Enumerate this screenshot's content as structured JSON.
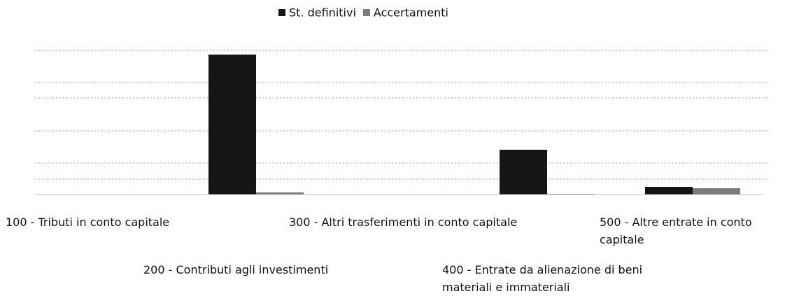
{
  "chart_data": {
    "type": "bar",
    "categories": [
      "100 - Tributi in conto capitale",
      "200 - Contributi agli investimenti",
      "300 - Altri trasferimenti in conto capitale",
      "400 - Entrate da alienazione di beni materiali e immateriali",
      "500 - Altre entrate in conto capitale"
    ],
    "series": [
      {
        "name": "St. definitivi",
        "color": "#151515",
        "values": [
          0,
          200,
          0,
          64,
          11
        ]
      },
      {
        "name": "Accertamenti",
        "color": "#7a7a7a",
        "values": [
          0,
          3,
          0,
          1,
          9
        ]
      }
    ],
    "ylim": [
      0,
      220
    ]
  }
}
